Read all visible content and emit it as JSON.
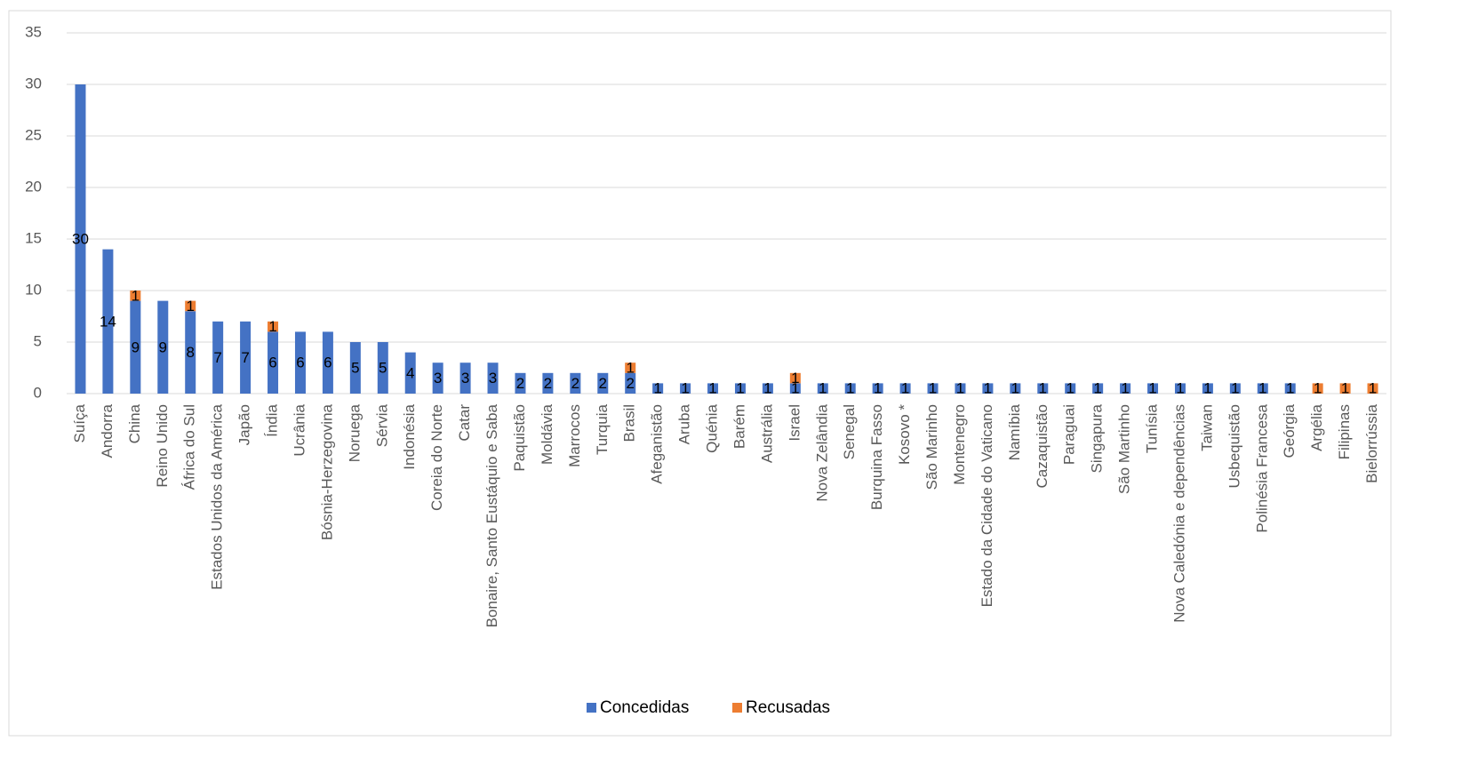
{
  "chart_data": {
    "type": "stacked_bar",
    "categories": [
      "Suíça",
      "Andorra",
      "China",
      "Reino Unido",
      "África do Sul",
      "Estados Unidos da América",
      "Japão",
      "Índia",
      "Ucrânia",
      "Bósnia-Herzegovina",
      "Noruega",
      "Sérvia",
      "Indonésia",
      "Coreia do Norte",
      "Catar",
      "Bonaire, Santo Eustáquio e Saba",
      "Paquistão",
      "Moldávia",
      "Marrocos",
      "Turquia",
      "Brasil",
      "Afeganistão",
      "Aruba",
      "Quénia",
      "Barém",
      "Austrália",
      "Israel",
      "Nova Zelândia",
      "Senegal",
      "Burquina Fasso",
      "Kosovo *",
      "São Marinho",
      "Montenegro",
      "Estado da Cidade do Vaticano",
      "Namíbia",
      "Cazaquistão",
      "Paraguai",
      "Singapura",
      "São Martinho",
      "Tunísia",
      "Nova Caledónia e dependências",
      "Taiwan",
      "Usbequistão",
      "Polinésia Francesa",
      "Geórgia",
      "Argélia",
      "Filipinas",
      "Bielorrússia"
    ],
    "series": [
      {
        "name": "Concedidas",
        "color": "#4472c4",
        "values": [
          30,
          14,
          9,
          9,
          8,
          7,
          7,
          6,
          6,
          6,
          5,
          5,
          4,
          3,
          3,
          3,
          2,
          2,
          2,
          2,
          2,
          1,
          1,
          1,
          1,
          1,
          1,
          1,
          1,
          1,
          1,
          1,
          1,
          1,
          1,
          1,
          1,
          1,
          1,
          1,
          1,
          1,
          1,
          1,
          1,
          0,
          0,
          0
        ]
      },
      {
        "name": "Recusadas",
        "color": "#ed7d31",
        "values": [
          0,
          0,
          1,
          0,
          1,
          0,
          0,
          1,
          0,
          0,
          0,
          0,
          0,
          0,
          0,
          0,
          0,
          0,
          0,
          0,
          1,
          0,
          0,
          0,
          0,
          0,
          1,
          0,
          0,
          0,
          0,
          0,
          0,
          0,
          0,
          0,
          0,
          0,
          0,
          0,
          0,
          0,
          0,
          0,
          0,
          1,
          1,
          1
        ]
      }
    ],
    "ylim": [
      0,
      35
    ],
    "yticks": [
      0,
      5,
      10,
      15,
      20,
      25,
      30,
      35
    ],
    "grid": true,
    "legend": "bottom"
  }
}
